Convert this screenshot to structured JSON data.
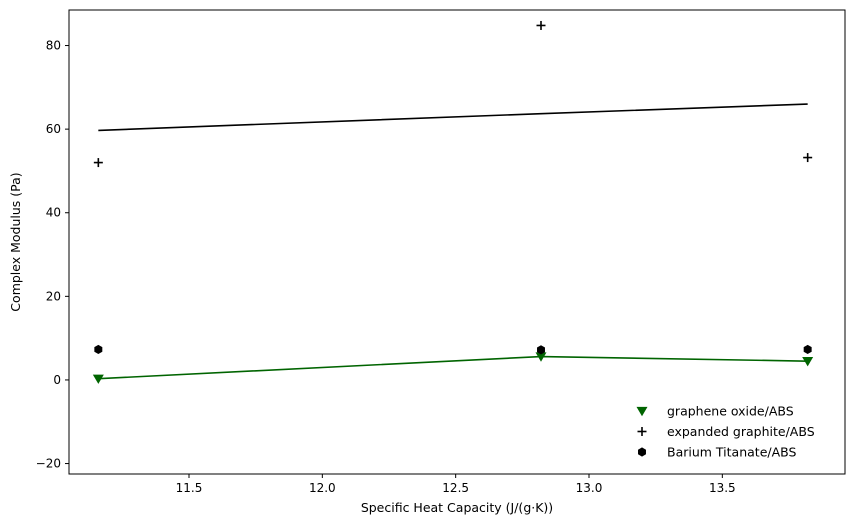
{
  "chart_data": {
    "type": "scatter",
    "title": "",
    "xlabel": "Specific Heat Capacity (J/(g·K))",
    "ylabel": "Complex Modulus (Pa)",
    "xlim": [
      11.05,
      13.96
    ],
    "ylim": [
      -22.5,
      88.5
    ],
    "xticks": [
      11.5,
      12.0,
      12.5,
      13.0,
      13.5
    ],
    "yticks": [
      -20,
      0,
      20,
      40,
      60,
      80
    ],
    "x": [
      11.16,
      12.82,
      13.82
    ],
    "grid": false,
    "legend_position": "lower-right",
    "series": [
      {
        "name": "graphene oxide/ABS",
        "marker": "triangle-down",
        "color": "#006400",
        "values": [
          0.3,
          5.6,
          4.5
        ],
        "fit_line": [
          0.3,
          5.6,
          4.5
        ]
      },
      {
        "name": "expanded graphite/ABS",
        "marker": "plus",
        "color": "#000000",
        "values": [
          52.0,
          84.8,
          53.2
        ],
        "fit_line": [
          59.7,
          63.7,
          66.0
        ]
      },
      {
        "name": "Barium Titanate/ABS",
        "marker": "hexagon",
        "color": "#000000",
        "values": [
          7.3,
          7.2,
          7.3
        ],
        "fit_line": null
      }
    ]
  }
}
